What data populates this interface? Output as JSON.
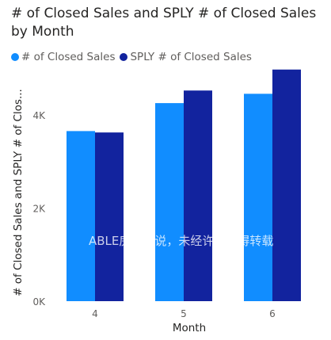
{
  "chart_data": {
    "type": "bar",
    "title": "# of Closed Sales and SPLY # of Closed Sales by Month",
    "xlabel": "Month",
    "ylabel": "# of Closed Sales and SPLY # of Clos...",
    "categories": [
      "4",
      "5",
      "6"
    ],
    "series": [
      {
        "name": "# of Closed Sales",
        "color": "#118dff",
        "values": [
          3650,
          4250,
          4450
        ]
      },
      {
        "name": "SPLY # of Closed Sales",
        "color": "#12239e",
        "values": [
          3620,
          4520,
          4970
        ]
      }
    ],
    "ylim": [
      0,
      5000
    ],
    "yticks": [
      {
        "value": 0,
        "label": "0K"
      },
      {
        "value": 2000,
        "label": "2K"
      },
      {
        "value": 4000,
        "label": "4K"
      }
    ],
    "grid": false,
    "legend": "top-left"
  },
  "watermark": "ABLE房市析说，未经许可不得转载"
}
